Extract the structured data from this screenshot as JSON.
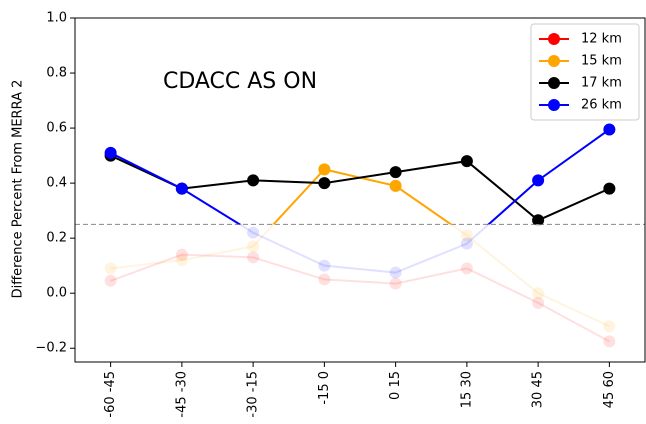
{
  "chart_data": {
    "type": "line",
    "annotation": "CDACC AS ON",
    "ylabel": "Difference Percent From MERRA 2",
    "categories": [
      "-60 -45",
      "-45 -30",
      "-30 -15",
      "-15 0",
      "0 15",
      "15 30",
      "30 45",
      "45 60"
    ],
    "series": [
      {
        "name": "12 km",
        "color": "#ff0000",
        "values": [
          0.045,
          0.14,
          0.13,
          0.05,
          0.035,
          0.09,
          -0.035,
          -0.175
        ]
      },
      {
        "name": "15 km",
        "color": "#ffa500",
        "values": [
          0.09,
          0.12,
          0.17,
          0.45,
          0.39,
          0.21,
          0.0,
          -0.12
        ]
      },
      {
        "name": "17 km",
        "color": "#000000",
        "values": [
          0.5,
          0.38,
          0.41,
          0.4,
          0.44,
          0.48,
          0.265,
          0.38
        ]
      },
      {
        "name": "26 km",
        "color": "#0000ff",
        "values": [
          0.51,
          0.38,
          0.22,
          0.1,
          0.075,
          0.18,
          0.41,
          0.595
        ]
      }
    ],
    "threshold": 0.25,
    "ylim": [
      -0.25,
      1.0
    ],
    "yticks": [
      {
        "value": -0.2,
        "label": "−0.2"
      },
      {
        "value": 0,
        "label": "0.0"
      },
      {
        "value": 0.2,
        "label": "0.2"
      },
      {
        "value": 0.4,
        "label": "0.4"
      },
      {
        "value": 0.6,
        "label": "0.6"
      },
      {
        "value": 0.8,
        "label": "0.8"
      },
      {
        "value": 1.0,
        "label": "1.0"
      }
    ],
    "legend": "upper right"
  }
}
